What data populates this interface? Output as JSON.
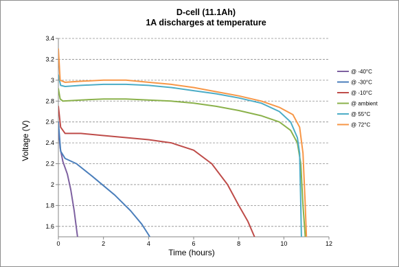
{
  "chart_data": {
    "type": "line",
    "title": "D-cell (11.1Ah)",
    "subtitle": "1A discharges at temperature",
    "xlabel": "Time (hours)",
    "ylabel": "Voltage (V)",
    "xlim": [
      0,
      12
    ],
    "ylim": [
      1.5,
      3.4
    ],
    "xticks": [
      0,
      2,
      4,
      6,
      8,
      10,
      12
    ],
    "yticks": [
      1.6,
      1.8,
      2,
      2.2,
      2.4,
      2.6,
      2.8,
      3,
      3.2,
      3.4
    ],
    "xtick_labels": [
      "0",
      "2",
      "4",
      "6",
      "8",
      "10",
      "12"
    ],
    "ytick_labels": [
      "1.6",
      "1.8",
      "2",
      "2.2",
      "2.4",
      "2.6",
      "2.8",
      "3",
      "3.2",
      "3.4"
    ],
    "grid": "horizontal dashed",
    "legend_position": "right",
    "series": [
      {
        "name": "@ -40°C",
        "color": "#7d60a0",
        "points": [
          [
            0,
            2.55
          ],
          [
            0.08,
            2.35
          ],
          [
            0.2,
            2.22
          ],
          [
            0.4,
            2.1
          ],
          [
            0.55,
            1.95
          ],
          [
            0.7,
            1.75
          ],
          [
            0.82,
            1.55
          ],
          [
            0.88,
            1.45
          ]
        ]
      },
      {
        "name": "@ -30°C",
        "color": "#4a7ebb",
        "points": [
          [
            0,
            2.6
          ],
          [
            0.1,
            2.32
          ],
          [
            0.3,
            2.25
          ],
          [
            0.8,
            2.2
          ],
          [
            1.5,
            2.08
          ],
          [
            2.5,
            1.9
          ],
          [
            3.2,
            1.75
          ],
          [
            3.7,
            1.62
          ],
          [
            4.0,
            1.52
          ],
          [
            4.05,
            1.5
          ]
        ]
      },
      {
        "name": "@ -10°C",
        "color": "#be4b48",
        "points": [
          [
            0,
            2.75
          ],
          [
            0.1,
            2.55
          ],
          [
            0.3,
            2.49
          ],
          [
            1,
            2.49
          ],
          [
            2,
            2.47
          ],
          [
            3,
            2.45
          ],
          [
            4,
            2.43
          ],
          [
            5,
            2.4
          ],
          [
            6,
            2.33
          ],
          [
            6.8,
            2.2
          ],
          [
            7.5,
            2.0
          ],
          [
            8.0,
            1.8
          ],
          [
            8.4,
            1.65
          ],
          [
            8.7,
            1.5
          ]
        ]
      },
      {
        "name": "@ ambient",
        "color": "#8ab14a",
        "points": [
          [
            0,
            2.92
          ],
          [
            0.08,
            2.82
          ],
          [
            0.2,
            2.8
          ],
          [
            1,
            2.81
          ],
          [
            2,
            2.82
          ],
          [
            3,
            2.82
          ],
          [
            4,
            2.81
          ],
          [
            5,
            2.8
          ],
          [
            6,
            2.78
          ],
          [
            7,
            2.75
          ],
          [
            8,
            2.71
          ],
          [
            9,
            2.66
          ],
          [
            9.8,
            2.6
          ],
          [
            10.3,
            2.52
          ],
          [
            10.6,
            2.4
          ],
          [
            10.75,
            2.2
          ],
          [
            10.85,
            1.8
          ],
          [
            10.95,
            1.5
          ]
        ]
      },
      {
        "name": "@ 55°C",
        "color": "#4bacc6",
        "points": [
          [
            0,
            3.05
          ],
          [
            0.1,
            2.95
          ],
          [
            0.3,
            2.94
          ],
          [
            1,
            2.95
          ],
          [
            2,
            2.96
          ],
          [
            3,
            2.96
          ],
          [
            4,
            2.95
          ],
          [
            5,
            2.93
          ],
          [
            6,
            2.9
          ],
          [
            7,
            2.87
          ],
          [
            8,
            2.83
          ],
          [
            9,
            2.78
          ],
          [
            9.8,
            2.7
          ],
          [
            10.3,
            2.6
          ],
          [
            10.6,
            2.45
          ],
          [
            10.7,
            2.3
          ],
          [
            10.75,
            1.8
          ],
          [
            10.78,
            1.5
          ]
        ]
      },
      {
        "name": "@ 72°C",
        "color": "#f79646",
        "points": [
          [
            0,
            3.3
          ],
          [
            0.08,
            3.0
          ],
          [
            0.3,
            2.98
          ],
          [
            1,
            2.99
          ],
          [
            2,
            3.0
          ],
          [
            3,
            3.0
          ],
          [
            4,
            2.98
          ],
          [
            5,
            2.96
          ],
          [
            6,
            2.93
          ],
          [
            7,
            2.89
          ],
          [
            8,
            2.85
          ],
          [
            9,
            2.8
          ],
          [
            9.8,
            2.74
          ],
          [
            10.4,
            2.67
          ],
          [
            10.7,
            2.55
          ],
          [
            10.85,
            2.3
          ],
          [
            10.95,
            1.8
          ],
          [
            11.0,
            1.5
          ]
        ]
      }
    ]
  }
}
